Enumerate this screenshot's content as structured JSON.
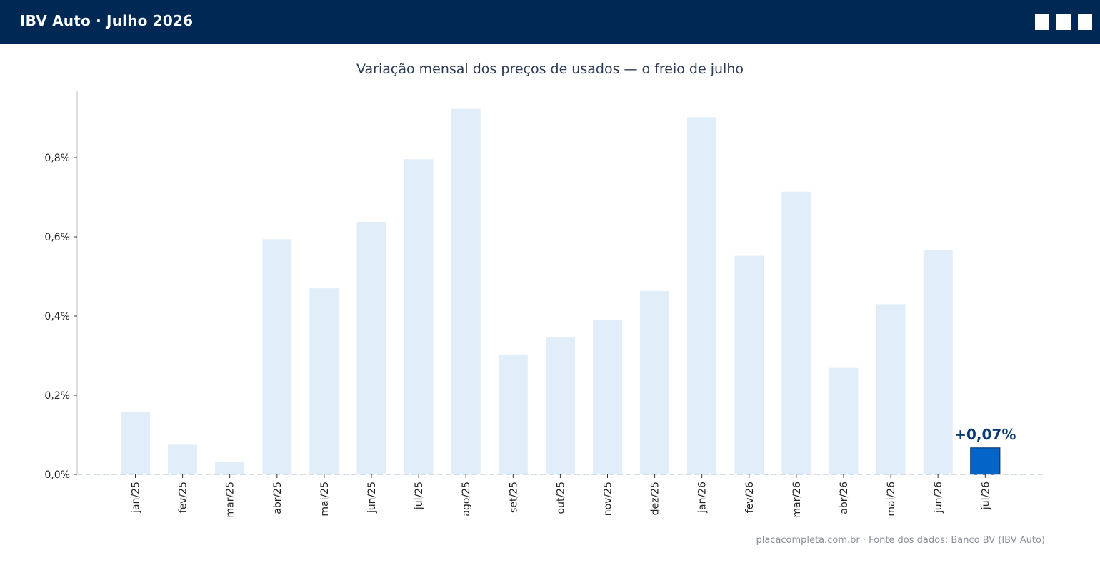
{
  "header": {
    "title": "IBV Auto · Julho 2026"
  },
  "chart_data": {
    "type": "bar",
    "title": "Variação mensal dos preços de usados — o freio de julho",
    "xlabel": "",
    "ylabel": "",
    "categories": [
      "jan/25",
      "fev/25",
      "mar/25",
      "abr/25",
      "mai/25",
      "jun/25",
      "jul/25",
      "ago/25",
      "set/25",
      "out/25",
      "nov/25",
      "dez/25",
      "jan/26",
      "fev/26",
      "mar/26",
      "abr/26",
      "mai/26",
      "jun/26",
      "jul/26"
    ],
    "values": [
      0.157,
      0.075,
      0.031,
      0.594,
      0.47,
      0.638,
      0.796,
      0.923,
      0.303,
      0.347,
      0.391,
      0.463,
      0.902,
      0.552,
      0.714,
      0.269,
      0.43,
      0.567,
      0.067
    ],
    "y_ticks": [
      0.0,
      0.2,
      0.4,
      0.6,
      0.8
    ],
    "y_tick_labels": [
      "0,0%",
      "0,2%",
      "0,4%",
      "0,6%",
      "0,8%"
    ],
    "ylim": [
      0,
      0.97
    ],
    "highlight_index": 18,
    "highlight_label": "+0,07%",
    "colors": {
      "bar": "#e1edf9",
      "highlight": "#0564c8",
      "highlight_edge": "#0a3a73",
      "highlight_label": "#0a3a73",
      "zero_line": "#c5d4e3",
      "axis": "#c0c0c0"
    },
    "grid": false,
    "legend": "none"
  },
  "footer": {
    "source": "placacompleta.com.br  ·  Fonte dos dados: Banco BV (IBV Auto)"
  }
}
